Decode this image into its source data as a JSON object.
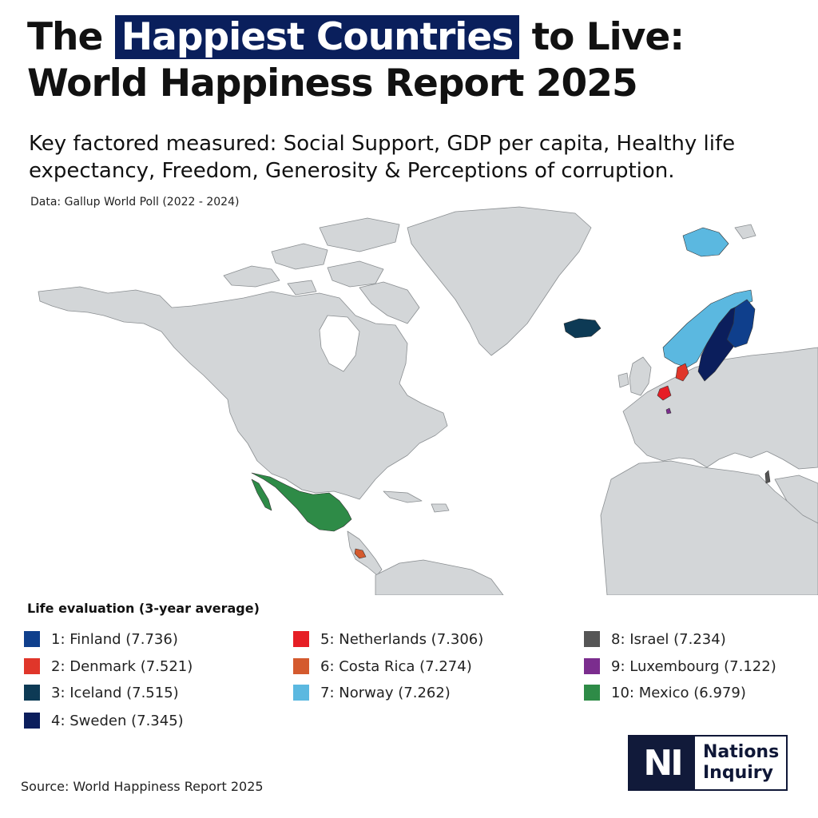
{
  "title": {
    "part1": "The",
    "highlight": "Happiest Countries",
    "part2": "to Live:",
    "line2": "World Happiness Report 2025"
  },
  "subtitle": "Key factored measured: Social Support, GDP per capita, Healthy life expectancy, Freedom, Generosity & Perceptions of corruption.",
  "data_note": "Data: Gallup World Poll (2022 - 2024)",
  "legend": {
    "title": "Life evaluation (3-year average)",
    "items": [
      {
        "label": "1: Finland (7.736)",
        "color": "#0f3f8c"
      },
      {
        "label": "2: Denmark (7.521)",
        "color": "#e0362a"
      },
      {
        "label": "3: Iceland (7.515)",
        "color": "#0d3a55"
      },
      {
        "label": "4: Sweden (7.345)",
        "color": "#0b1e5c"
      },
      {
        "label": "5: Netherlands (7.306)",
        "color": "#e61e25"
      },
      {
        "label": "6: Costa Rica (7.274)",
        "color": "#d45a2e"
      },
      {
        "label": "7: Norway (7.262)",
        "color": "#5bb8e0"
      },
      {
        "label": "8: Israel (7.234)",
        "color": "#555555"
      },
      {
        "label": "9: Luxembourg (7.122)",
        "color": "#7b2d8e"
      },
      {
        "label": "10: Mexico (6.979)",
        "color": "#2e8b47"
      }
    ]
  },
  "map_colors": {
    "land": "#d3d6d8",
    "border": "#8a8e91"
  },
  "source": "Source: World Happiness Report 2025",
  "logo": {
    "mark": "NI",
    "line1": "Nations",
    "line2": "Inquiry"
  }
}
